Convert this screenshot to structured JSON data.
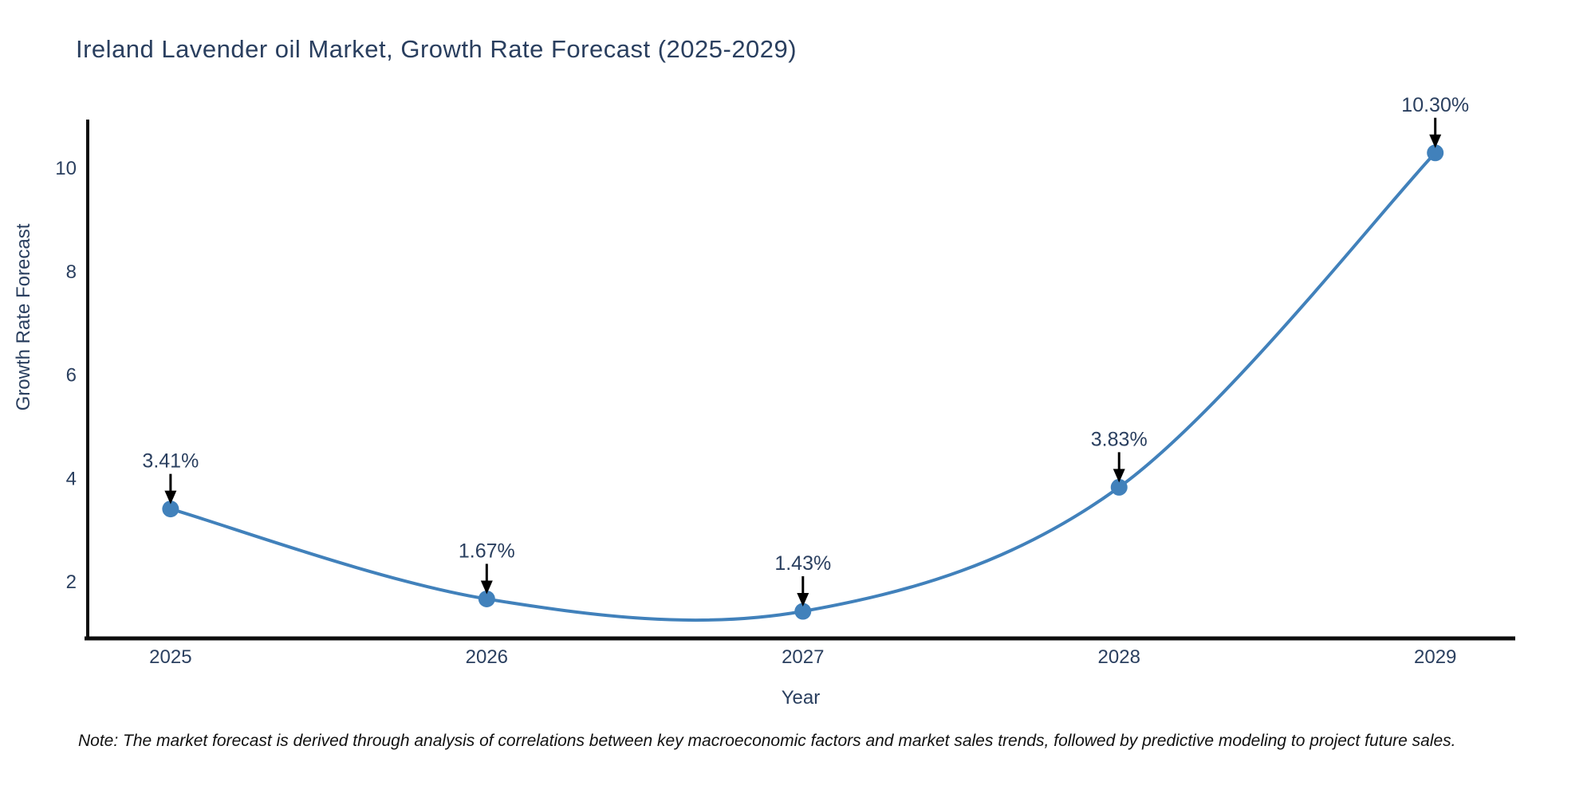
{
  "chart_data": {
    "type": "line",
    "title": "Ireland Lavender oil Market, Growth Rate Forecast (2025-2029)",
    "xlabel": "Year",
    "ylabel": "Growth Rate Forecast",
    "categories": [
      2025,
      2026,
      2027,
      2028,
      2029
    ],
    "series": [
      {
        "name": "Growth Rate Forecast",
        "values": [
          3.41,
          1.67,
          1.43,
          3.83,
          10.3
        ],
        "point_labels": [
          "3.41%",
          "1.67%",
          "1.43%",
          "3.83%",
          "10.30%"
        ]
      }
    ],
    "line_shape": "spline",
    "grid": false,
    "legend": false,
    "yticks": [
      2,
      4,
      6,
      8,
      10
    ],
    "ylim": [
      0.906,
      10.944
    ],
    "xlim": [
      2024.738,
      2029.253
    ],
    "note": "Note: The market forecast is derived through analysis of correlations between key macroeconomic factors and market sales trends, followed by predictive modeling to project future sales.",
    "colors": {
      "line": "#4181bb",
      "marker": "#4181bb",
      "text": "#2a3f5f",
      "axis": "#0d0d0d",
      "annotation_arrow": "#000000",
      "background": "#ffffff"
    }
  }
}
